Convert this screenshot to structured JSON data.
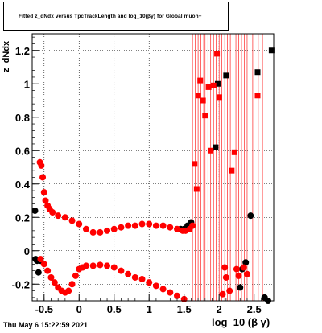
{
  "title": "Fitted  z_dNdx  versus TpcTrackLength and log_10(βγ) for Global muon+",
  "timestamp": "Thu May  6 15:22:59 2021",
  "colors": {
    "black_series": "#000000",
    "red_series": "#ff0000",
    "grid": "#000000"
  },
  "chart_data": {
    "type": "scatter",
    "title": "Fitted  z_dNdx  versus TpcTrackLength and log_10(βγ) for Global muon+",
    "xlabel": "log_10 (β γ)",
    "ylabel": "z_dNdx",
    "xlim": [
      -0.67,
      2.78
    ],
    "ylim": [
      -0.3,
      1.3
    ],
    "grid": true,
    "xticks": [
      "-0.5",
      "0",
      "0.5",
      "1",
      "1.5",
      "2",
      "2.5"
    ],
    "yticks": [
      "-0.2",
      "0",
      "0.2",
      "0.4",
      "0.6",
      "0.8",
      "1",
      "1.2"
    ],
    "series": [
      {
        "color": "black",
        "points": [
          [
            -0.63,
            0.24
          ],
          [
            -0.62,
            -0.05
          ],
          [
            -0.6,
            -0.06
          ],
          [
            -0.58,
            -0.13
          ],
          [
            -0.55,
            -0.06
          ],
          [
            1.45,
            0.13
          ],
          [
            1.5,
            0.13
          ],
          [
            1.55,
            0.15
          ],
          [
            1.6,
            0.17
          ],
          [
            1.95,
            0.62
          ],
          [
            1.98,
            1.0
          ],
          [
            2.1,
            1.05
          ],
          [
            2.3,
            -0.22
          ],
          [
            2.33,
            -0.11
          ],
          [
            2.38,
            -0.07
          ],
          [
            2.45,
            0.21
          ],
          [
            2.55,
            1.07
          ],
          [
            2.65,
            -0.28
          ],
          [
            2.7,
            -0.3
          ],
          [
            2.75,
            1.2
          ]
        ]
      },
      {
        "color": "red",
        "upper_band": [
          [
            -0.56,
            0.53
          ],
          [
            -0.54,
            0.51
          ],
          [
            -0.52,
            0.44
          ],
          [
            -0.5,
            0.35
          ],
          [
            -0.48,
            0.3
          ],
          [
            -0.45,
            0.27
          ],
          [
            -0.42,
            0.25
          ],
          [
            -0.38,
            0.23
          ],
          [
            -0.3,
            0.21
          ],
          [
            -0.2,
            0.2
          ],
          [
            -0.1,
            0.18
          ],
          [
            0.0,
            0.16
          ],
          [
            0.1,
            0.13
          ],
          [
            0.2,
            0.11
          ],
          [
            0.3,
            0.11
          ],
          [
            0.4,
            0.12
          ],
          [
            0.5,
            0.13
          ],
          [
            0.6,
            0.14
          ],
          [
            0.7,
            0.15
          ],
          [
            0.8,
            0.15
          ],
          [
            0.9,
            0.16
          ],
          [
            1.0,
            0.16
          ],
          [
            1.1,
            0.15
          ],
          [
            1.2,
            0.15
          ],
          [
            1.3,
            0.14
          ],
          [
            1.4,
            0.13
          ],
          [
            1.48,
            0.12
          ],
          [
            1.52,
            0.12
          ],
          [
            1.58,
            0.13
          ],
          [
            1.62,
            0.15
          ]
        ],
        "lower_band": [
          [
            -0.55,
            -0.05
          ],
          [
            -0.5,
            -0.08
          ],
          [
            -0.45,
            -0.12
          ],
          [
            -0.4,
            -0.16
          ],
          [
            -0.35,
            -0.19
          ],
          [
            -0.3,
            -0.22
          ],
          [
            -0.25,
            -0.24
          ],
          [
            -0.2,
            -0.25
          ],
          [
            -0.15,
            -0.24
          ],
          [
            -0.1,
            -0.2
          ],
          [
            -0.05,
            -0.15
          ],
          [
            0.0,
            -0.11
          ],
          [
            0.05,
            -0.1
          ],
          [
            0.1,
            -0.09
          ],
          [
            0.2,
            -0.09
          ],
          [
            0.3,
            -0.085
          ],
          [
            0.4,
            -0.09
          ],
          [
            0.5,
            -0.1
          ],
          [
            0.6,
            -0.12
          ],
          [
            0.7,
            -0.14
          ],
          [
            0.8,
            -0.16
          ],
          [
            0.9,
            -0.17
          ],
          [
            1.0,
            -0.19
          ],
          [
            1.1,
            -0.21
          ],
          [
            1.2,
            -0.23
          ],
          [
            1.3,
            -0.25
          ],
          [
            1.4,
            -0.27
          ],
          [
            1.5,
            -0.29
          ]
        ],
        "scattered_points": [
          [
            1.65,
            0.52
          ],
          [
            1.68,
            0.37
          ],
          [
            1.7,
            0.93
          ],
          [
            1.73,
            1.02
          ],
          [
            1.77,
            0.9
          ],
          [
            1.8,
            0.81
          ],
          [
            1.85,
            0.98
          ],
          [
            1.88,
            0.6
          ],
          [
            1.92,
            0.99
          ],
          [
            1.97,
            1.18
          ],
          [
            2.0,
            0.92
          ],
          [
            2.05,
            -0.26
          ],
          [
            2.08,
            -0.1
          ],
          [
            2.1,
            -0.16
          ],
          [
            2.15,
            -0.24
          ],
          [
            2.18,
            0.48
          ],
          [
            2.22,
            0.59
          ],
          [
            2.25,
            -0.11
          ],
          [
            2.28,
            -0.15
          ],
          [
            2.35,
            -0.1
          ],
          [
            2.4,
            -0.14
          ],
          [
            2.55,
            0.93
          ]
        ],
        "error_bar_x": [
          1.62,
          1.66,
          1.7,
          1.74,
          1.78,
          1.8,
          1.84,
          1.88,
          1.92,
          1.96,
          2.0,
          2.04,
          2.08,
          2.12,
          2.16,
          2.2,
          2.24,
          2.28,
          2.32,
          2.36,
          2.4,
          2.48,
          2.56,
          2.62
        ]
      }
    ]
  }
}
